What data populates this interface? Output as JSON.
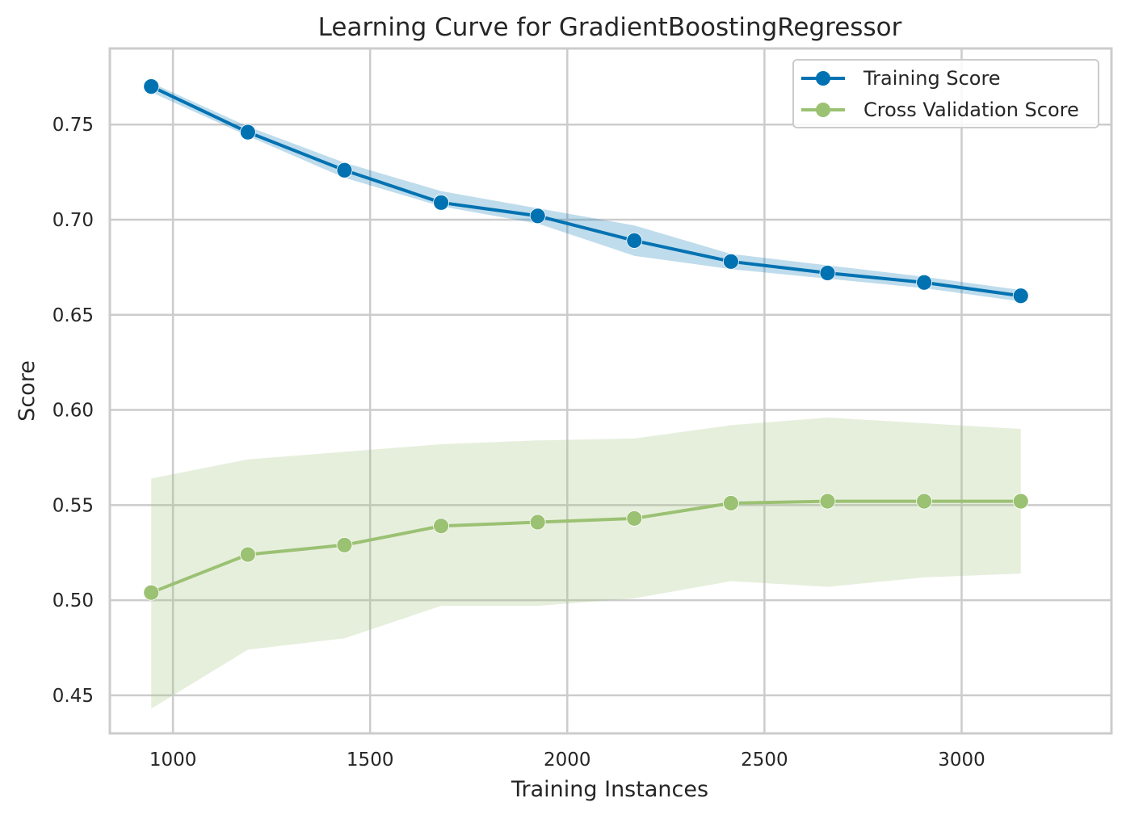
{
  "chart_data": {
    "type": "line",
    "title": "Learning Curve for GradientBoostingRegressor",
    "xlabel": "Training Instances",
    "ylabel": "Score",
    "xlim": [
      840,
      3380
    ],
    "ylim": [
      0.43,
      0.79
    ],
    "x_ticks": [
      1000,
      1500,
      2000,
      2500,
      3000
    ],
    "x_tick_labels": [
      "1000",
      "1500",
      "2000",
      "2500",
      "3000"
    ],
    "y_ticks": [
      0.45,
      0.5,
      0.55,
      0.6,
      0.65,
      0.7,
      0.75
    ],
    "y_tick_labels": [
      "0.45",
      "0.50",
      "0.55",
      "0.60",
      "0.65",
      "0.70",
      "0.75"
    ],
    "grid": true,
    "legend_position": "top-right",
    "x": [
      945,
      1190,
      1435,
      1680,
      1925,
      2170,
      2415,
      2660,
      2905,
      3150
    ],
    "series": [
      {
        "name": "Training Score",
        "color": "#0072b2",
        "band_color": "#0072b2",
        "values": [
          0.77,
          0.746,
          0.726,
          0.709,
          0.702,
          0.689,
          0.678,
          0.672,
          0.667,
          0.66
        ],
        "upper": [
          0.772,
          0.749,
          0.73,
          0.715,
          0.706,
          0.697,
          0.682,
          0.676,
          0.67,
          0.663
        ],
        "lower": [
          0.767,
          0.744,
          0.722,
          0.707,
          0.698,
          0.681,
          0.674,
          0.669,
          0.664,
          0.657
        ]
      },
      {
        "name": "Cross Validation Score",
        "color": "#9bc173",
        "band_color": "#9bc173",
        "values": [
          0.504,
          0.524,
          0.529,
          0.539,
          0.541,
          0.543,
          0.551,
          0.552,
          0.552,
          0.552
        ],
        "upper": [
          0.564,
          0.574,
          0.578,
          0.582,
          0.584,
          0.585,
          0.592,
          0.596,
          0.593,
          0.59
        ],
        "lower": [
          0.443,
          0.474,
          0.48,
          0.497,
          0.497,
          0.501,
          0.51,
          0.507,
          0.512,
          0.514
        ]
      }
    ]
  }
}
